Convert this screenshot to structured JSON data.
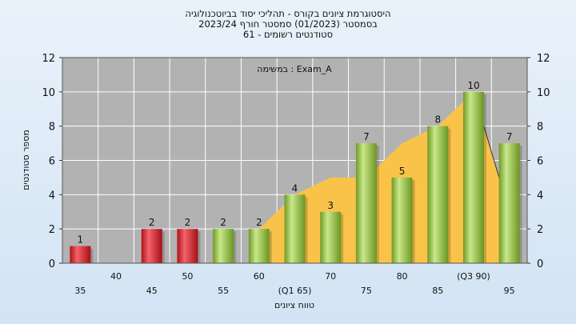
{
  "header": {
    "line1": "היסטוגרמת ציונים בקורס - תהליכי יסוד בביוטכנולוגיה",
    "line2": "בסמסטר  (01/2023)  סמסטר חורף  2023/24",
    "line3": "סטודנטים רשומים - 61"
  },
  "colors": {
    "fail_bar": "#d8222a",
    "pass_bar": "#8fbf3a",
    "area_fill": "#f9c34a",
    "plot_bg": "#b2b2b2",
    "grid": "#ffffff"
  },
  "chart_data": {
    "type": "bar",
    "title": "היסטוגרמת ציונים בקורס - תהליכי יסוד בביוטכנולוגיה",
    "subtitle": "בסמסטר  (01/2023)  סמסטר חורף  2023/24 | סטודנטים רשומים - 61",
    "xlabel": "טווח ציונים",
    "ylabel": "מספר סטודנטים",
    "ylim": [
      0,
      12
    ],
    "yticks": [
      0,
      2,
      4,
      6,
      8,
      10,
      12
    ],
    "grid": true,
    "annotation": "במשימה : Exam_A",
    "categories": [
      "35",
      "40",
      "45",
      "50",
      "55",
      "60",
      "(Q1 65)",
      "70",
      "75",
      "80",
      "85",
      "(Q3 90)",
      "95"
    ],
    "values": [
      1,
      0,
      2,
      2,
      2,
      2,
      4,
      3,
      7,
      5,
      8,
      10,
      7
    ],
    "value_labels": [
      "1",
      "",
      "2",
      "2",
      "2",
      "2",
      "4",
      "3",
      "7",
      "5",
      "8",
      "10",
      "7"
    ],
    "bar_colors": [
      "fail",
      "fail",
      "fail",
      "fail",
      "pass",
      "pass",
      "pass",
      "pass",
      "pass",
      "pass",
      "pass",
      "pass",
      "pass"
    ],
    "area_series": {
      "x": [
        "60",
        "(Q1 65)",
        "70",
        "75",
        "80",
        "85",
        "(Q3 90)",
        "95"
      ],
      "values": [
        2,
        4,
        5,
        5,
        7,
        8,
        10,
        3
      ]
    }
  }
}
